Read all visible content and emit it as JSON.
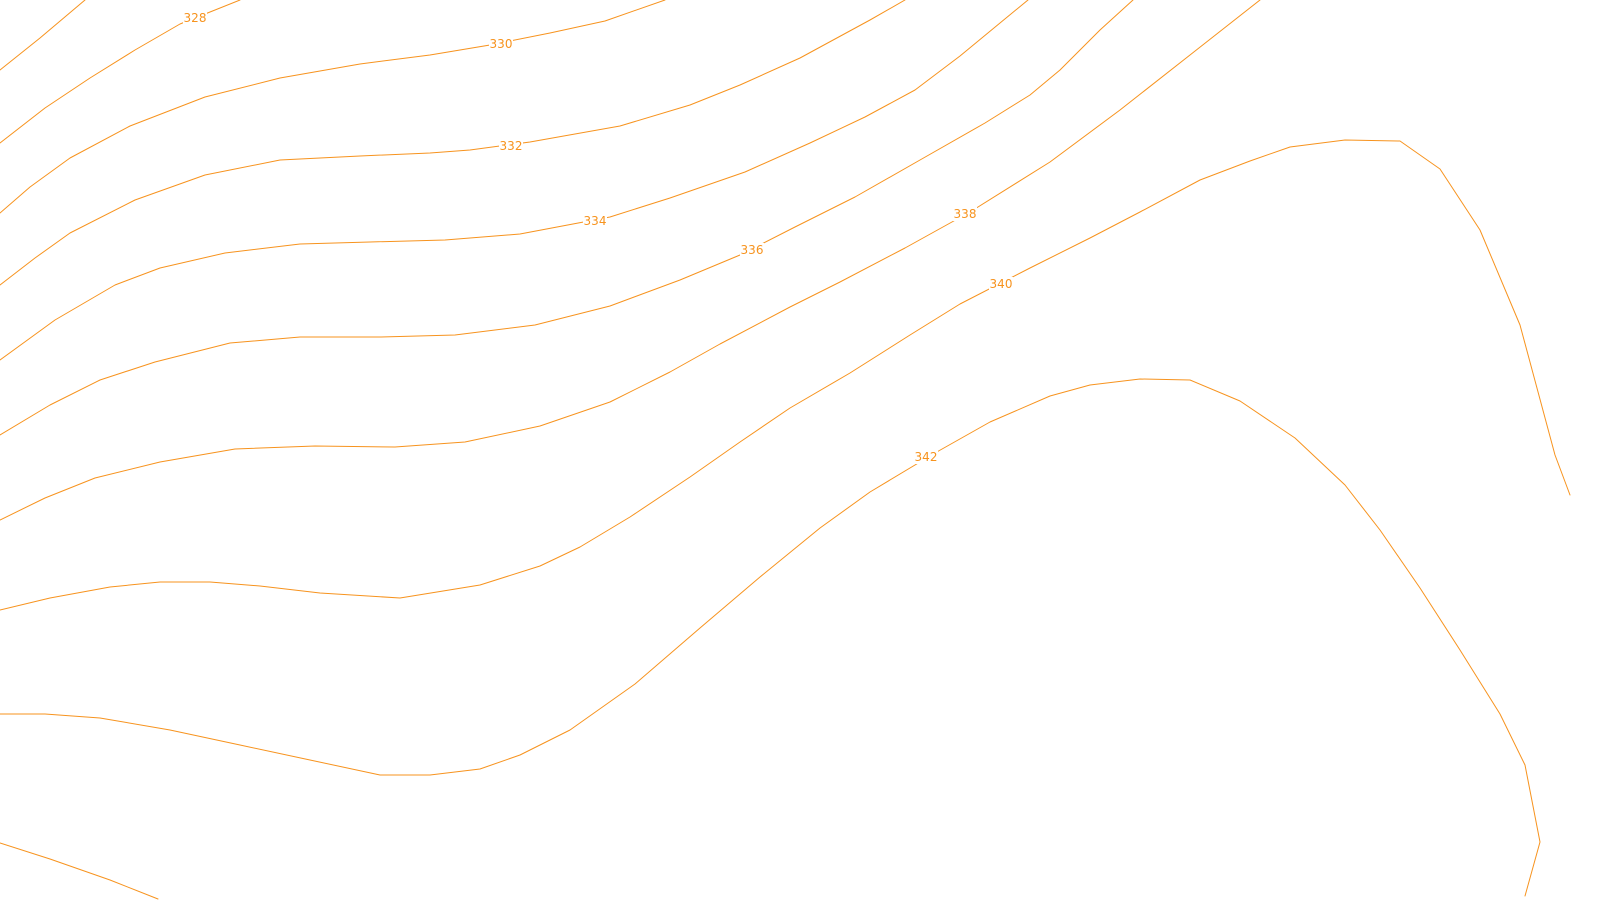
{
  "map": {
    "background_color": "#ffffff",
    "contour_color": "#f7931e",
    "contours": [
      {
        "id": "c-unlabeled-a",
        "label": ""
      },
      {
        "id": "c328",
        "label": "328"
      },
      {
        "id": "c330",
        "label": "330"
      },
      {
        "id": "c332",
        "label": "332"
      },
      {
        "id": "c334",
        "label": "334"
      },
      {
        "id": "c336",
        "label": "336"
      },
      {
        "id": "c338",
        "label": "338"
      },
      {
        "id": "c340",
        "label": "340"
      },
      {
        "id": "c342",
        "label": "342"
      },
      {
        "id": "c-unlabeled-b",
        "label": ""
      }
    ]
  }
}
